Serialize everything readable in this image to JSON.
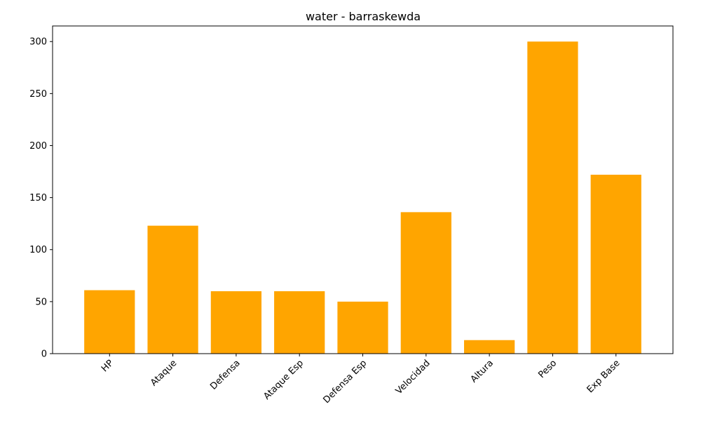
{
  "chart_data": {
    "type": "bar",
    "title": "water - barraskewda",
    "xlabel": "",
    "ylabel": "",
    "categories": [
      "HP",
      "Ataque",
      "Defensa",
      "Ataque Esp",
      "Defensa Esp",
      "Velocidad",
      "Altura",
      "Peso",
      "Exp Base"
    ],
    "values": [
      61,
      123,
      60,
      60,
      50,
      136,
      13,
      300,
      172
    ],
    "ylim": [
      0,
      315
    ],
    "yticks": [
      0,
      50,
      100,
      150,
      200,
      250,
      300
    ],
    "bar_color": "#FFA500",
    "grid": false,
    "legend": "none"
  }
}
